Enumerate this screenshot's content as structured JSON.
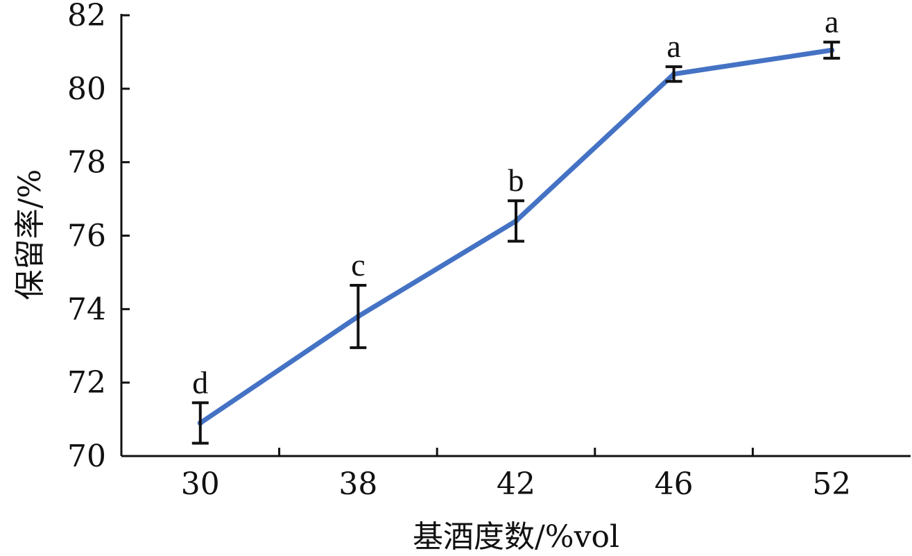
{
  "chart_data": {
    "type": "line",
    "title": "",
    "xlabel": "基酒度数/%vol",
    "ylabel": "保留率/%",
    "categories": [
      "30",
      "38",
      "42",
      "46",
      "52"
    ],
    "series": [
      {
        "values": [
          70.9,
          73.8,
          76.4,
          80.4,
          81.05
        ],
        "error": [
          0.55,
          0.85,
          0.55,
          0.2,
          0.22
        ],
        "labels": [
          "d",
          "c",
          "b",
          "a",
          "a"
        ],
        "color": "#4472C4"
      }
    ],
    "ylim": [
      70,
      82
    ],
    "yticks": [
      70,
      72,
      74,
      76,
      78,
      80,
      82
    ],
    "grid": false,
    "legend": "none"
  }
}
